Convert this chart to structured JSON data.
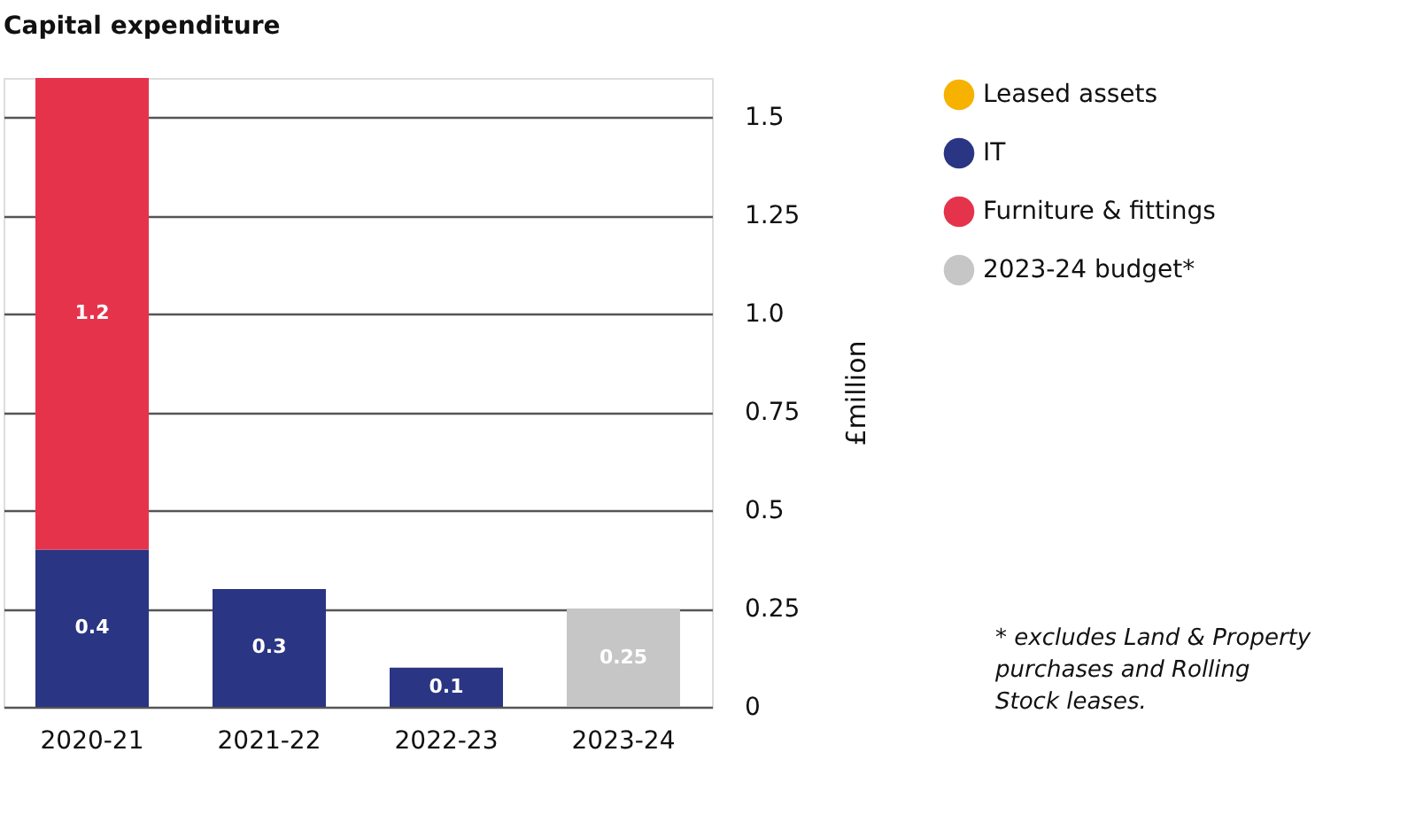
{
  "chart_data": {
    "type": "bar",
    "title": "Capital expenditure",
    "ylabel": "£million",
    "categories": [
      "2020-21",
      "2021-22",
      "2022-23",
      "2023-24"
    ],
    "stacked": true,
    "series": [
      {
        "name": "Leased assets",
        "color": "#f7b200",
        "values": [
          null,
          null,
          null,
          null
        ]
      },
      {
        "name": "IT",
        "color": "#2a3583",
        "values": [
          0.4,
          0.3,
          0.1,
          null
        ]
      },
      {
        "name": "Furniture & fittings",
        "color": "#e6334c",
        "values": [
          1.2,
          null,
          null,
          null
        ]
      },
      {
        "name": "2023-24 budget*",
        "color": "#c6c6c6",
        "values": [
          null,
          null,
          null,
          0.25
        ]
      }
    ],
    "ylim": [
      0,
      1.6
    ],
    "yticks": [
      0,
      0.25,
      0.5,
      0.75,
      {
        "value": 1,
        "label": "1.0"
      },
      1.25,
      1.5
    ],
    "grid": "y",
    "legend": "right",
    "data_labels": true,
    "annotations": [
      "* excludes Land & Property purchases and Rolling Stock leases."
    ]
  }
}
